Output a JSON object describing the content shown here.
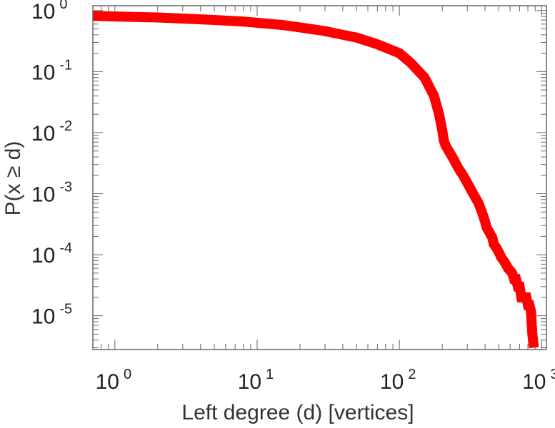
{
  "chart_data": {
    "type": "line",
    "title": "",
    "xlabel": "Left degree (d) [vertices]",
    "ylabel": "P(x ≥ d)",
    "xscale": "log",
    "yscale": "log",
    "xlim": [
      0.7,
      1080
    ],
    "ylim": [
      2.8e-06,
      1.2
    ],
    "grid": false,
    "legend": "none",
    "line_color": "#ff0000",
    "x_ticks": [
      {
        "base": "10",
        "exp": "0",
        "value": 1
      },
      {
        "base": "10",
        "exp": "1",
        "value": 10
      },
      {
        "base": "10",
        "exp": "2",
        "value": 100
      },
      {
        "base": "10",
        "exp": "3",
        "value": 1000
      }
    ],
    "y_ticks": [
      {
        "base": "10",
        "exp": "0",
        "value": 1
      },
      {
        "base": "10",
        "exp": "-1",
        "value": 0.1
      },
      {
        "base": "10",
        "exp": "-2",
        "value": 0.01
      },
      {
        "base": "10",
        "exp": "-3",
        "value": 0.001
      },
      {
        "base": "10",
        "exp": "-4",
        "value": 0.0001
      },
      {
        "base": "10",
        "exp": "-5",
        "value": 1e-05
      }
    ],
    "series": [
      {
        "x": [
          0.7,
          1,
          2,
          3,
          5,
          8,
          10,
          15,
          20,
          30,
          40,
          50,
          70,
          100,
          120,
          150,
          175,
          190,
          200,
          205,
          210,
          220,
          240,
          260,
          280,
          300,
          330,
          360,
          380,
          400,
          410,
          430,
          450,
          460,
          480,
          500,
          520,
          540,
          560,
          580,
          600,
          620,
          640,
          660,
          680,
          700,
          720,
          740,
          760,
          780,
          800,
          820,
          840,
          860,
          880
        ],
        "y": [
          0.82,
          0.8,
          0.77,
          0.74,
          0.7,
          0.66,
          0.63,
          0.58,
          0.53,
          0.46,
          0.4,
          0.36,
          0.28,
          0.2,
          0.14,
          0.08,
          0.04,
          0.02,
          0.011,
          0.0075,
          0.0063,
          0.0052,
          0.0037,
          0.0026,
          0.002,
          0.0015,
          0.001,
          0.0007,
          0.0005,
          0.00035,
          0.00028,
          0.00023,
          0.00019,
          0.00015,
          0.00013,
          0.00011,
          9e-05,
          8e-05,
          7e-05,
          6e-05,
          5.5e-05,
          5e-05,
          4e-05,
          4e-05,
          3e-05,
          3e-05,
          2e-05,
          2e-05,
          2e-05,
          2e-05,
          1.5e-05,
          1.5e-05,
          1.2e-05,
          5e-06,
          3e-06
        ]
      }
    ]
  }
}
